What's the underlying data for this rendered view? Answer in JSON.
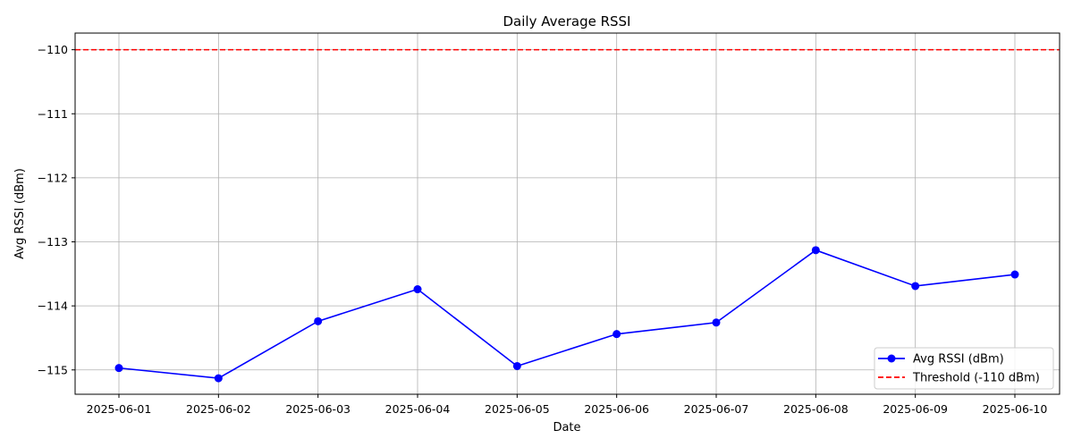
{
  "chart_data": {
    "type": "line",
    "title": "Daily Average RSSI",
    "xlabel": "Date",
    "ylabel": "Avg RSSI (dBm)",
    "x": [
      "2025-06-01",
      "2025-06-02",
      "2025-06-03",
      "2025-06-04",
      "2025-06-05",
      "2025-06-06",
      "2025-06-07",
      "2025-06-08",
      "2025-06-09",
      "2025-06-10"
    ],
    "series": [
      {
        "name": "Avg RSSI (dBm)",
        "color": "#0000ff",
        "marker": "circle",
        "values": [
          -114.97,
          -115.13,
          -114.24,
          -113.74,
          -114.94,
          -114.44,
          -114.26,
          -113.13,
          -113.69,
          -113.51
        ]
      }
    ],
    "reference_lines": [
      {
        "name": "Threshold (-110 dBm)",
        "y": -110,
        "color": "#ff0000",
        "style": "dashed"
      }
    ],
    "ylim": [
      -115.38,
      -109.74
    ],
    "yticks": [
      -110,
      -111,
      -112,
      -113,
      -114,
      -115
    ],
    "ytick_labels": [
      "−110",
      "−111",
      "−112",
      "−113",
      "−114",
      "−115"
    ],
    "grid": true,
    "legend_position": "lower-right"
  }
}
